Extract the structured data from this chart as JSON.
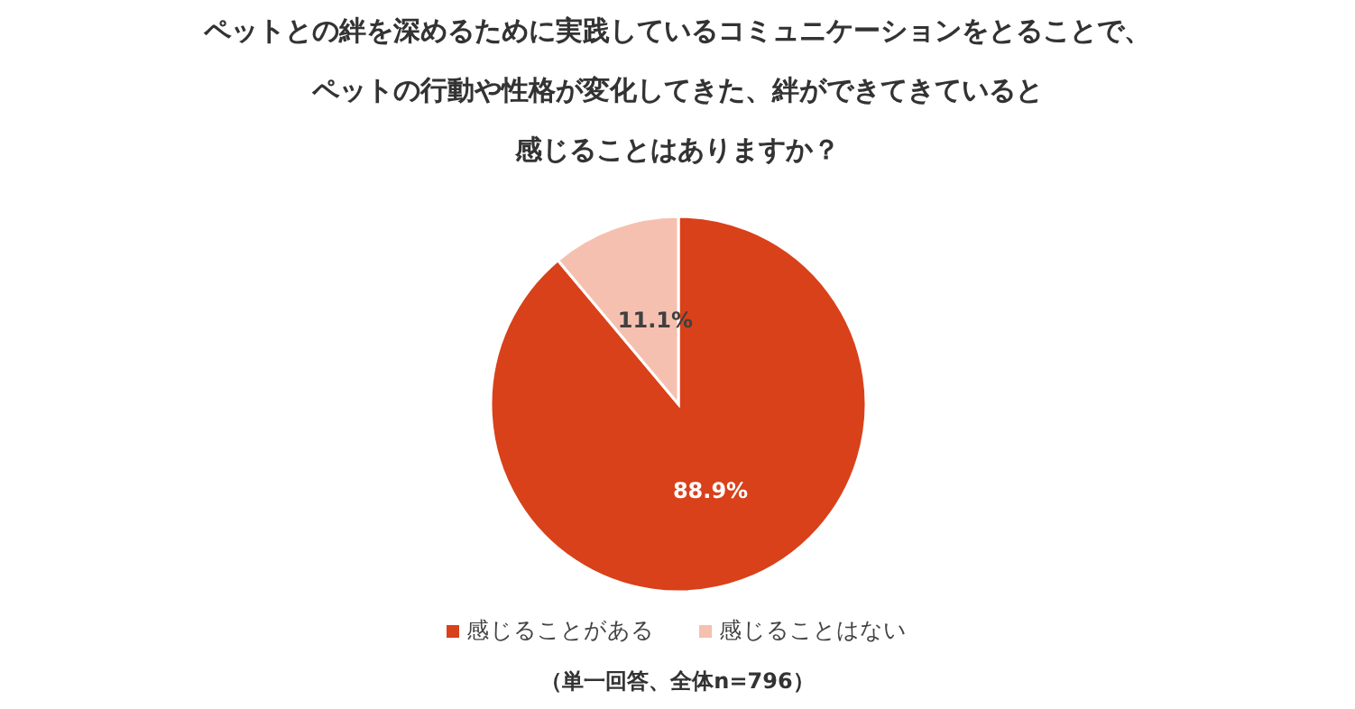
{
  "chart_data": {
    "type": "pie",
    "title": "ペットとの絆を深めるために実践しているコミュニケーションをとることで、ペットの行動や性格が変化してきた、絆ができてきていると感じることはありますか？",
    "categories": [
      "感じることがある",
      "感じることはない"
    ],
    "values": [
      88.9,
      11.1
    ],
    "colors": [
      "#d9411a",
      "#f5c0b0"
    ],
    "value_labels": [
      "88.9%",
      "11.1%"
    ],
    "legend": "bottom",
    "annotations": [
      "（単一回答、全体n=796）"
    ]
  }
}
